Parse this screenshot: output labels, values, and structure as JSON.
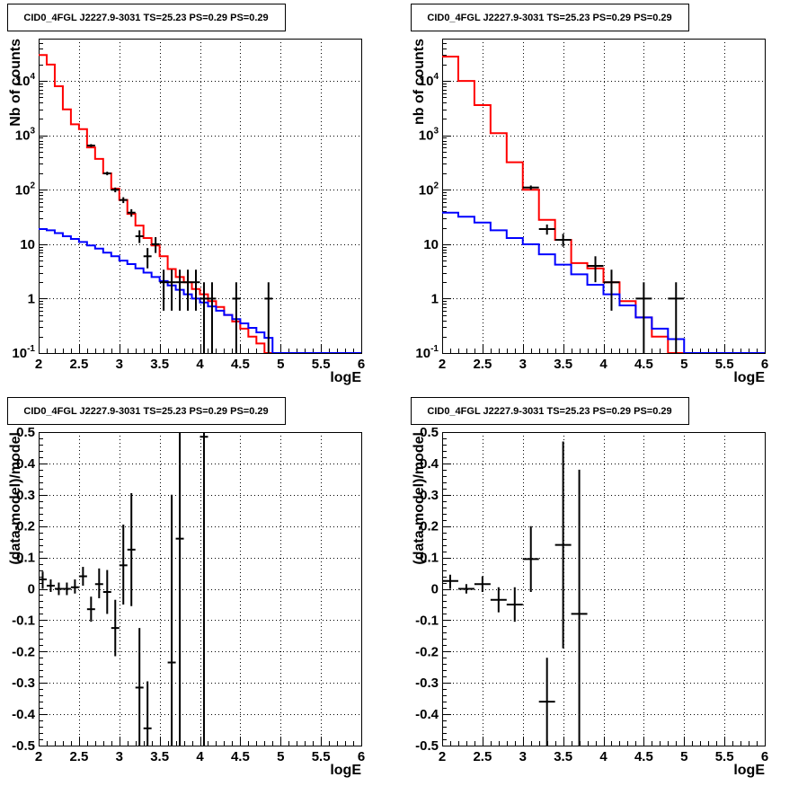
{
  "chart_data": [
    {
      "panel": "top-left",
      "type": "step-histogram-with-points",
      "title": "CID0_4FGL J2227.9-3031 TS=25.23 PS=0.29 PS=0.29",
      "xlabel": "logE",
      "ylabel": "Nb of counts",
      "xlim": [
        2,
        6
      ],
      "ylim": [
        0.1,
        60000
      ],
      "yscale": "log",
      "grid": true,
      "xticks": [
        "2",
        "2.5",
        "3",
        "3.5",
        "4",
        "4.5",
        "5",
        "5.5",
        "6"
      ],
      "yticks": [
        {
          "base": "10",
          "exp": "-1"
        },
        {
          "base": "1",
          "exp": ""
        },
        {
          "base": "10",
          "exp": ""
        },
        {
          "base": "10",
          "exp": "2"
        },
        {
          "base": "10",
          "exp": "3"
        },
        {
          "base": "10",
          "exp": "4"
        }
      ],
      "series": [
        {
          "color": "#ff0000",
          "kind": "step",
          "edges": [
            2.0,
            2.1,
            2.2,
            2.3,
            2.4,
            2.5,
            2.6,
            2.7,
            2.8,
            2.9,
            3.0,
            3.1,
            3.2,
            3.3,
            3.4,
            3.5,
            3.6,
            3.7,
            3.8,
            3.9,
            4.0,
            4.1,
            4.2,
            4.3,
            4.4,
            4.5,
            4.6,
            4.7,
            4.8,
            4.9
          ],
          "values": [
            30000,
            20000,
            8000,
            3000,
            1600,
            1300,
            600,
            370,
            200,
            105,
            65,
            36,
            22,
            13,
            9.5,
            6,
            3.5,
            2.5,
            2.0,
            1.5,
            1.2,
            0.9,
            0.7,
            0.5,
            0.38,
            0.28,
            0.2,
            0.15,
            0.1
          ]
        },
        {
          "color": "#0000ff",
          "kind": "step",
          "edges": [
            2.0,
            2.1,
            2.2,
            2.3,
            2.4,
            2.5,
            2.6,
            2.7,
            2.8,
            2.9,
            3.0,
            3.1,
            3.2,
            3.3,
            3.4,
            3.5,
            3.6,
            3.7,
            3.8,
            3.9,
            4.0,
            4.1,
            4.2,
            4.3,
            4.4,
            4.5,
            4.6,
            4.7,
            4.8,
            4.9,
            5.0,
            5.1,
            5.2,
            5.3,
            5.4,
            5.5,
            5.6,
            5.7,
            5.8,
            5.9,
            6.0
          ],
          "values": [
            19,
            18,
            16,
            14,
            12.5,
            11,
            9.5,
            8.3,
            7.0,
            6.0,
            5.0,
            4.3,
            3.6,
            3.0,
            2.5,
            2.1,
            1.75,
            1.45,
            1.2,
            1.0,
            0.85,
            0.72,
            0.6,
            0.5,
            0.42,
            0.35,
            0.29,
            0.24,
            0.19,
            0.1,
            0.1,
            0.1,
            0.1,
            0.1,
            0.1,
            0.1,
            0.1,
            0.1,
            0.1,
            0.1
          ]
        },
        {
          "color": "#000000",
          "kind": "points",
          "points": [
            {
              "x": 2.65,
              "xe": 0.05,
              "y": 650,
              "ylo": 610,
              "yhi": 690
            },
            {
              "x": 2.85,
              "xe": 0.05,
              "y": 200,
              "ylo": 185,
              "yhi": 215
            },
            {
              "x": 2.95,
              "xe": 0.05,
              "y": 100,
              "ylo": 90,
              "yhi": 110
            },
            {
              "x": 3.05,
              "xe": 0.05,
              "y": 65,
              "ylo": 57,
              "yhi": 73
            },
            {
              "x": 3.15,
              "xe": 0.05,
              "y": 38,
              "ylo": 32,
              "yhi": 44
            },
            {
              "x": 3.25,
              "xe": 0.05,
              "y": 14,
              "ylo": 10.5,
              "yhi": 18
            },
            {
              "x": 3.35,
              "xe": 0.05,
              "y": 6,
              "ylo": 3.6,
              "yhi": 8.5
            },
            {
              "x": 3.45,
              "xe": 0.05,
              "y": 10,
              "ylo": 6.9,
              "yhi": 13.5
            },
            {
              "x": 3.55,
              "xe": 0.05,
              "y": 2,
              "ylo": 0.6,
              "yhi": 3.4
            },
            {
              "x": 3.65,
              "xe": 0.05,
              "y": 2,
              "ylo": 0.6,
              "yhi": 3.4
            },
            {
              "x": 3.75,
              "xe": 0.05,
              "y": 2,
              "ylo": 0.6,
              "yhi": 3.4
            },
            {
              "x": 3.85,
              "xe": 0.05,
              "y": 2,
              "ylo": 0.6,
              "yhi": 3.4
            },
            {
              "x": 3.95,
              "xe": 0.05,
              "y": 2,
              "ylo": 0.6,
              "yhi": 3.4
            },
            {
              "x": 4.05,
              "xe": 0.05,
              "y": 1,
              "ylo": 0.1,
              "yhi": 2
            },
            {
              "x": 4.15,
              "xe": 0.05,
              "y": 1,
              "ylo": 0.1,
              "yhi": 2
            },
            {
              "x": 4.45,
              "xe": 0.05,
              "y": 1,
              "ylo": 0.1,
              "yhi": 2
            },
            {
              "x": 4.85,
              "xe": 0.05,
              "y": 1,
              "ylo": 0.1,
              "yhi": 2
            }
          ]
        }
      ]
    },
    {
      "panel": "top-right",
      "type": "step-histogram-with-points",
      "title": "CID0_4FGL J2227.9-3031 TS=25.23 PS=0.29 PS=0.29",
      "xlabel": "logE",
      "ylabel": "nb of counts",
      "xlim": [
        2,
        6
      ],
      "ylim": [
        0.1,
        60000
      ],
      "yscale": "log",
      "grid": true,
      "xticks": [
        "2",
        "2.5",
        "3",
        "3.5",
        "4",
        "4.5",
        "5",
        "5.5",
        "6"
      ],
      "yticks": [
        {
          "base": "10",
          "exp": "-1"
        },
        {
          "base": "1",
          "exp": ""
        },
        {
          "base": "10",
          "exp": ""
        },
        {
          "base": "10",
          "exp": "2"
        },
        {
          "base": "10",
          "exp": "3"
        },
        {
          "base": "10",
          "exp": "4"
        }
      ],
      "series": [
        {
          "color": "#ff0000",
          "kind": "step",
          "edges": [
            2.0,
            2.2,
            2.4,
            2.6,
            2.8,
            3.0,
            3.2,
            3.4,
            3.6,
            3.8,
            4.0,
            4.2,
            4.4,
            4.6,
            4.8,
            5.0
          ],
          "values": [
            28000,
            10000,
            3600,
            1100,
            320,
            100,
            28,
            12,
            4.5,
            3.6,
            2.0,
            0.9,
            0.45,
            0.2,
            0.1
          ]
        },
        {
          "color": "#0000ff",
          "kind": "step",
          "edges": [
            2.0,
            2.2,
            2.4,
            2.6,
            2.8,
            3.0,
            3.2,
            3.4,
            3.6,
            3.8,
            4.0,
            4.2,
            4.4,
            4.6,
            4.8,
            5.0,
            5.2,
            5.4,
            5.6,
            5.8,
            6.0
          ],
          "values": [
            38,
            32,
            25,
            18,
            13,
            10,
            6.5,
            4.2,
            2.8,
            1.8,
            1.2,
            0.75,
            0.45,
            0.28,
            0.18,
            0.1,
            0.1,
            0.1,
            0.1,
            0.1
          ]
        },
        {
          "color": "#000000",
          "kind": "points",
          "points": [
            {
              "x": 3.1,
              "xe": 0.1,
              "y": 110,
              "ylo": 100,
              "yhi": 120
            },
            {
              "x": 3.3,
              "xe": 0.1,
              "y": 19,
              "ylo": 15,
              "yhi": 23
            },
            {
              "x": 3.5,
              "xe": 0.1,
              "y": 12,
              "ylo": 9,
              "yhi": 15.5
            },
            {
              "x": 3.9,
              "xe": 0.1,
              "y": 4,
              "ylo": 2,
              "yhi": 6
            },
            {
              "x": 4.1,
              "xe": 0.1,
              "y": 2,
              "ylo": 0.6,
              "yhi": 3.4
            },
            {
              "x": 4.5,
              "xe": 0.1,
              "y": 1,
              "ylo": 0.1,
              "yhi": 2
            },
            {
              "x": 4.9,
              "xe": 0.1,
              "y": 1,
              "ylo": 0.1,
              "yhi": 2
            }
          ]
        }
      ]
    },
    {
      "panel": "bottom-left",
      "type": "scatter-errorbars",
      "title": "CID0_4FGL J2227.9-3031 TS=25.23 PS=0.29 PS=0.29",
      "xlabel": "logE",
      "ylabel": "(data-model)/model",
      "xlim": [
        2,
        6
      ],
      "ylim": [
        -0.5,
        0.5
      ],
      "yscale": "linear",
      "grid": true,
      "xticks": [
        "2",
        "2.5",
        "3",
        "3.5",
        "4",
        "4.5",
        "5",
        "5.5",
        "6"
      ],
      "ytickLabels": [
        "-0.5",
        "-0.4",
        "-0.3",
        "-0.2",
        "-0.1",
        "0",
        "0.1",
        "0.2",
        "0.3",
        "0.4",
        "0.5"
      ],
      "series": [
        {
          "color": "#000000",
          "kind": "points",
          "points": [
            {
              "x": 2.05,
              "xe": 0.05,
              "y": 0.03,
              "ylo": 0.0,
              "yhi": 0.055
            },
            {
              "x": 2.15,
              "xe": 0.05,
              "y": 0.01,
              "ylo": -0.01,
              "yhi": 0.03
            },
            {
              "x": 2.25,
              "xe": 0.05,
              "y": 0.0,
              "ylo": -0.02,
              "yhi": 0.02
            },
            {
              "x": 2.35,
              "xe": 0.05,
              "y": 0.0,
              "ylo": -0.02,
              "yhi": 0.02
            },
            {
              "x": 2.45,
              "xe": 0.05,
              "y": 0.005,
              "ylo": -0.015,
              "yhi": 0.03
            },
            {
              "x": 2.55,
              "xe": 0.05,
              "y": 0.04,
              "ylo": 0.01,
              "yhi": 0.07
            },
            {
              "x": 2.65,
              "xe": 0.05,
              "y": -0.065,
              "ylo": -0.105,
              "yhi": -0.025
            },
            {
              "x": 2.75,
              "xe": 0.05,
              "y": 0.015,
              "ylo": -0.03,
              "yhi": 0.065
            },
            {
              "x": 2.85,
              "xe": 0.05,
              "y": -0.01,
              "ylo": -0.08,
              "yhi": 0.06
            },
            {
              "x": 2.95,
              "xe": 0.05,
              "y": -0.125,
              "ylo": -0.215,
              "yhi": -0.035
            },
            {
              "x": 3.05,
              "xe": 0.05,
              "y": 0.075,
              "ylo": -0.05,
              "yhi": 0.205
            },
            {
              "x": 3.15,
              "xe": 0.05,
              "y": 0.125,
              "ylo": -0.055,
              "yhi": 0.305
            },
            {
              "x": 3.25,
              "xe": 0.05,
              "y": -0.315,
              "ylo": -0.5,
              "yhi": -0.125
            },
            {
              "x": 3.35,
              "xe": 0.05,
              "y": -0.445,
              "ylo": -0.5,
              "yhi": -0.295
            },
            {
              "x": 3.65,
              "xe": 0.05,
              "y": -0.235,
              "ylo": -0.5,
              "yhi": 0.3
            },
            {
              "x": 3.75,
              "xe": 0.05,
              "y": 0.16,
              "ylo": -0.5,
              "yhi": 0.5
            },
            {
              "x": 4.05,
              "xe": 0.05,
              "y": 0.485,
              "ylo": -0.5,
              "yhi": 0.5
            }
          ]
        }
      ]
    },
    {
      "panel": "bottom-right",
      "type": "scatter-errorbars",
      "title": "CID0_4FGL J2227.9-3031 TS=25.23 PS=0.29 PS=0.29",
      "xlabel": "logE",
      "ylabel": "(data-model)/model",
      "xlim": [
        2,
        6
      ],
      "ylim": [
        -0.5,
        0.5
      ],
      "yscale": "linear",
      "grid": true,
      "xticks": [
        "2",
        "2.5",
        "3",
        "3.5",
        "4",
        "4.5",
        "5",
        "5.5",
        "6"
      ],
      "ytickLabels": [
        "-0.5",
        "-0.4",
        "-0.3",
        "-0.2",
        "-0.1",
        "0",
        "0.1",
        "0.2",
        "0.3",
        "0.4",
        "0.5"
      ],
      "series": [
        {
          "color": "#000000",
          "kind": "points",
          "points": [
            {
              "x": 2.1,
              "xe": 0.1,
              "y": 0.025,
              "ylo": 0.0,
              "yhi": 0.045
            },
            {
              "x": 2.3,
              "xe": 0.1,
              "y": 0.0,
              "ylo": -0.015,
              "yhi": 0.015
            },
            {
              "x": 2.5,
              "xe": 0.1,
              "y": 0.015,
              "ylo": -0.01,
              "yhi": 0.04
            },
            {
              "x": 2.7,
              "xe": 0.1,
              "y": -0.035,
              "ylo": -0.075,
              "yhi": 0.005
            },
            {
              "x": 2.9,
              "xe": 0.1,
              "y": -0.05,
              "ylo": -0.105,
              "yhi": 0.005
            },
            {
              "x": 3.1,
              "xe": 0.1,
              "y": 0.095,
              "ylo": -0.01,
              "yhi": 0.2
            },
            {
              "x": 3.3,
              "xe": 0.1,
              "y": -0.36,
              "ylo": -0.5,
              "yhi": -0.22
            },
            {
              "x": 3.5,
              "xe": 0.1,
              "y": 0.14,
              "ylo": -0.19,
              "yhi": 0.47
            },
            {
              "x": 3.7,
              "xe": 0.1,
              "y": -0.08,
              "ylo": -0.5,
              "yhi": 0.38
            }
          ]
        }
      ]
    }
  ]
}
